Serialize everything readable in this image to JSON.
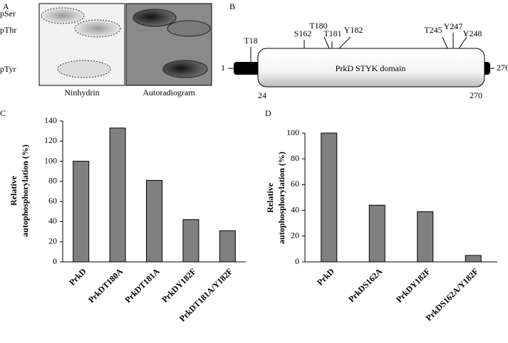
{
  "panel_a": {
    "label": "A",
    "rows": [
      "pSer",
      "pThr",
      "pTyr"
    ],
    "captions": [
      "Ninhydrin",
      "Autoradiogram"
    ]
  },
  "panel_b": {
    "label": "B",
    "domain": "PrkD STYK domain",
    "start": "1",
    "end": "276",
    "domain_start": "24",
    "domain_end": "270",
    "sites": [
      "T18",
      "S162",
      "T180",
      "T181",
      "Y182",
      "T245",
      "Y247",
      "Y248"
    ]
  },
  "chart_data": [
    {
      "type": "bar",
      "panel": "C",
      "ylabel": [
        "Relative",
        "autophosphorylation (%)"
      ],
      "categories": [
        "PrkD",
        "PrkDT180A",
        "PrkDT181A",
        "PrkDY182F",
        "PrkDT181A/Y182F"
      ],
      "values": [
        100,
        133,
        81,
        42,
        31
      ],
      "color": "#808080",
      "ylim": [
        0,
        140
      ],
      "yticks": [
        0,
        20,
        40,
        60,
        80,
        100,
        120,
        140
      ]
    },
    {
      "type": "bar",
      "panel": "D",
      "ylabel": [
        "Relative",
        "autophosphorylation (%)"
      ],
      "categories": [
        "PrkD",
        "PrkDS162A",
        "PrkDY182F",
        "PrkDS162A/Y182F"
      ],
      "values": [
        100,
        44,
        39,
        5
      ],
      "color": "#808080",
      "ylim": [
        0,
        100
      ],
      "yticks": [
        0,
        20,
        40,
        60,
        80,
        100
      ]
    }
  ]
}
